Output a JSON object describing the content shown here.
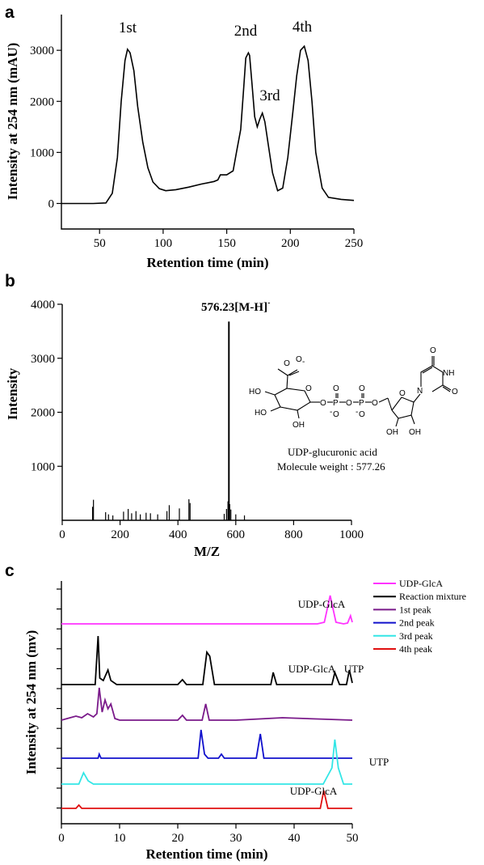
{
  "chart_data": [
    {
      "panel": "a",
      "type": "line",
      "xlabel": "Retention time (min)",
      "ylabel": "Intensity at 254 nm (mAU)",
      "xlim": [
        20,
        250
      ],
      "ylim": [
        -500,
        3700
      ],
      "xticks": [
        50,
        100,
        150,
        200,
        250
      ],
      "yticks": [
        0,
        1000,
        2000,
        3000
      ],
      "grid": false,
      "series": [
        {
          "x": [
            20,
            45,
            55,
            60,
            64,
            67,
            70,
            72,
            74,
            77,
            80,
            84,
            88,
            92,
            97,
            102,
            110,
            120,
            130,
            140,
            143,
            145,
            150,
            155,
            158,
            161,
            163,
            165,
            167,
            168,
            170,
            172,
            174,
            176,
            178,
            180,
            183,
            186,
            190,
            194,
            198,
            202,
            205,
            208,
            211,
            214,
            217,
            220,
            225,
            230,
            240,
            250
          ],
          "y": [
            0,
            0,
            10,
            200,
            900,
            2000,
            2800,
            3020,
            2950,
            2600,
            1900,
            1200,
            700,
            420,
            290,
            250,
            270,
            320,
            380,
            430,
            460,
            560,
            560,
            640,
            1050,
            1450,
            2150,
            2850,
            2950,
            2900,
            2300,
            1700,
            1500,
            1650,
            1770,
            1600,
            1100,
            600,
            250,
            300,
            900,
            1800,
            2500,
            3000,
            3080,
            2800,
            2000,
            1000,
            300,
            120,
            80,
            60
          ]
        }
      ],
      "annotations": [
        "1st",
        "2nd",
        "3rd",
        "4th"
      ]
    },
    {
      "panel": "b",
      "type": "bar",
      "xlabel": "M/Z",
      "ylabel": "Intensity",
      "xlim": [
        0,
        1000
      ],
      "ylim": [
        0,
        4000
      ],
      "xticks": [
        0,
        200,
        400,
        600,
        800,
        1000
      ],
      "yticks": [
        1000,
        2000,
        3000,
        4000
      ],
      "grid": false,
      "x": [
        105,
        108,
        150,
        160,
        175,
        212,
        228,
        240,
        255,
        270,
        290,
        305,
        330,
        362,
        370,
        405,
        438,
        442,
        560,
        568,
        573,
        576.23,
        579,
        583,
        600,
        630
      ],
      "values": [
        250,
        380,
        150,
        110,
        90,
        160,
        210,
        130,
        170,
        110,
        140,
        130,
        110,
        170,
        280,
        220,
        390,
        320,
        120,
        210,
        350,
        3680,
        300,
        200,
        110,
        90
      ],
      "peak_label": "576.23[M-H]",
      "peak_label_sup": "-",
      "structure_caption": [
        "UDP-glucuronic acid",
        "Molecule weight : 577.26"
      ]
    },
    {
      "panel": "c",
      "type": "line",
      "xlabel": "Retention time (min)",
      "ylabel": "Intensity at 254 nm (mv)",
      "xlim": [
        0,
        50
      ],
      "xticks": [
        0,
        10,
        20,
        30,
        40,
        50
      ],
      "grid": false,
      "legend_position": "top-right",
      "series": [
        {
          "name": "UDP-GlcA",
          "color": "#ff33ff",
          "x": [
            0,
            44,
            45.2,
            46.2,
            47.2,
            48.5,
            49.2,
            49.7,
            50
          ],
          "y": [
            0,
            0,
            2,
            35,
            2,
            0,
            1,
            10,
            2
          ]
        },
        {
          "name": "Reaction mixture",
          "color": "#000000",
          "x": [
            0,
            5.8,
            6.3,
            6.6,
            7.2,
            8.0,
            8.5,
            9.5,
            20,
            20.8,
            21.5,
            24.3,
            25.0,
            25.5,
            26.3,
            30,
            36,
            36.4,
            37,
            46.5,
            47.0,
            47.8,
            49.0,
            49.5,
            50
          ],
          "y": [
            0,
            0,
            60,
            8,
            5,
            18,
            5,
            0,
            0,
            6,
            0,
            0,
            40,
            35,
            0,
            0,
            0,
            15,
            0,
            0,
            15,
            0,
            0,
            18,
            2
          ]
        },
        {
          "name": "1st peak",
          "color": "#7a1a8a",
          "x": [
            0,
            1.5,
            2.5,
            3.5,
            4.5,
            5.5,
            6.1,
            6.5,
            7.0,
            7.5,
            8.0,
            8.5,
            9.2,
            10,
            20,
            20.8,
            21.5,
            24.2,
            24.8,
            25.4,
            30,
            38,
            50
          ],
          "y": [
            0,
            3,
            5,
            3,
            8,
            4,
            8,
            40,
            10,
            25,
            14,
            20,
            2,
            0,
            0,
            6,
            0,
            0,
            20,
            0,
            0,
            3,
            0
          ]
        },
        {
          "name": "2nd peak",
          "color": "#1010cc",
          "x": [
            0,
            6.3,
            6.5,
            6.8,
            20,
            23.5,
            24.0,
            24.6,
            25.2,
            27,
            27.5,
            28,
            33.5,
            34.2,
            34.8,
            40,
            50
          ],
          "y": [
            0,
            0,
            5,
            0,
            0,
            0,
            35,
            5,
            0,
            0,
            5,
            0,
            0,
            30,
            0,
            0,
            0
          ]
        },
        {
          "name": "3rd peak",
          "color": "#33e6e6",
          "x": [
            0,
            3.0,
            3.8,
            4.6,
            5.5,
            45,
            46.5,
            47.0,
            47.6,
            48.5,
            50
          ],
          "y": [
            0,
            0,
            14,
            4,
            0,
            0,
            20,
            55,
            20,
            0,
            0
          ]
        },
        {
          "name": "4th peak",
          "color": "#e01010",
          "x": [
            0,
            2.5,
            3.0,
            3.5,
            44.5,
            45.1,
            45.8,
            50
          ],
          "y": [
            0,
            0,
            4,
            0,
            0,
            22,
            0,
            0
          ]
        }
      ],
      "annotations": [
        "UDP-GlcA",
        "UDP-GlcA",
        "UTP",
        "UTP",
        "UDP-GlcA"
      ]
    }
  ],
  "panels": {
    "a": {
      "label": "a"
    },
    "b": {
      "label": "b"
    },
    "c": {
      "label": "c"
    }
  }
}
